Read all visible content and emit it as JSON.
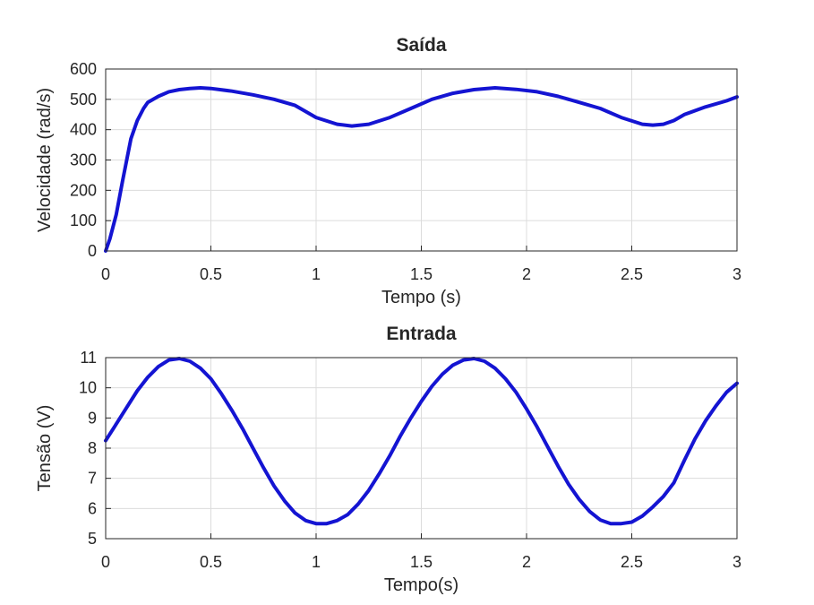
{
  "chart_data": [
    {
      "type": "line",
      "title": "Saída",
      "xlabel": "Tempo (s)",
      "ylabel": "Velocidade (rad/s)",
      "xlim": [
        0,
        3
      ],
      "ylim": [
        0,
        600
      ],
      "xticks": [
        "0",
        "0.5",
        "1",
        "1.5",
        "2",
        "2.5",
        "3"
      ],
      "yticks": [
        "0",
        "100",
        "200",
        "300",
        "400",
        "500",
        "600"
      ],
      "grid": true,
      "color": "#1414d2",
      "x": [
        0,
        0.02,
        0.05,
        0.08,
        0.1,
        0.12,
        0.15,
        0.18,
        0.2,
        0.25,
        0.3,
        0.35,
        0.4,
        0.45,
        0.5,
        0.6,
        0.7,
        0.8,
        0.9,
        1.0,
        1.1,
        1.17,
        1.25,
        1.35,
        1.45,
        1.55,
        1.65,
        1.75,
        1.85,
        1.95,
        2.05,
        2.15,
        2.25,
        2.35,
        2.45,
        2.55,
        2.6,
        2.65,
        2.7,
        2.75,
        2.85,
        2.95,
        3.0
      ],
      "y": [
        0,
        40,
        120,
        230,
        300,
        370,
        430,
        470,
        490,
        510,
        525,
        532,
        536,
        538,
        536,
        527,
        515,
        500,
        480,
        440,
        418,
        412,
        418,
        440,
        470,
        500,
        520,
        532,
        538,
        533,
        525,
        510,
        490,
        470,
        440,
        418,
        415,
        418,
        430,
        450,
        475,
        495,
        508
      ]
    },
    {
      "type": "line",
      "title": "Entrada",
      "xlabel": "Tempo(s)",
      "ylabel": "Tensão (V)",
      "xlim": [
        0,
        3
      ],
      "ylim": [
        5,
        11
      ],
      "xticks": [
        "0",
        "0.5",
        "1",
        "1.5",
        "2",
        "2.5",
        "3"
      ],
      "yticks": [
        "5",
        "6",
        "7",
        "8",
        "9",
        "10",
        "11"
      ],
      "grid": true,
      "color": "#1414d2",
      "x": [
        0,
        0.05,
        0.1,
        0.15,
        0.2,
        0.25,
        0.3,
        0.35,
        0.4,
        0.45,
        0.5,
        0.55,
        0.6,
        0.65,
        0.7,
        0.75,
        0.8,
        0.85,
        0.9,
        0.95,
        1.0,
        1.05,
        1.1,
        1.15,
        1.2,
        1.25,
        1.3,
        1.35,
        1.4,
        1.45,
        1.5,
        1.55,
        1.6,
        1.65,
        1.7,
        1.75,
        1.8,
        1.85,
        1.9,
        1.95,
        2.0,
        2.05,
        2.1,
        2.15,
        2.2,
        2.25,
        2.3,
        2.35,
        2.4,
        2.45,
        2.5,
        2.55,
        2.6,
        2.65,
        2.7,
        2.75,
        2.8,
        2.85,
        2.9,
        2.95,
        3.0
      ],
      "y": [
        8.25,
        8.8,
        9.35,
        9.9,
        10.35,
        10.7,
        10.92,
        10.97,
        10.88,
        10.65,
        10.3,
        9.8,
        9.25,
        8.65,
        8.0,
        7.35,
        6.75,
        6.25,
        5.85,
        5.6,
        5.5,
        5.5,
        5.6,
        5.8,
        6.15,
        6.6,
        7.15,
        7.75,
        8.4,
        9.0,
        9.55,
        10.05,
        10.45,
        10.75,
        10.92,
        10.97,
        10.88,
        10.65,
        10.3,
        9.85,
        9.3,
        8.7,
        8.05,
        7.4,
        6.8,
        6.3,
        5.9,
        5.62,
        5.5,
        5.5,
        5.55,
        5.75,
        6.05,
        6.4,
        6.85,
        7.6,
        8.3,
        8.9,
        9.4,
        9.85,
        10.15
      ]
    }
  ]
}
